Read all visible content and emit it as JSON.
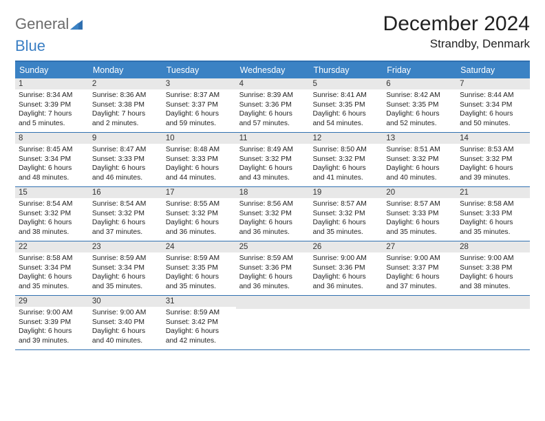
{
  "logo": {
    "word1": "General",
    "word2": "Blue"
  },
  "title": "December 2024",
  "location": "Strandby, Denmark",
  "colors": {
    "header_bg": "#3b82c4",
    "border": "#2f6fb0",
    "daynum_bg": "#e8e8e8",
    "logo_gray": "#6b6b6b",
    "logo_blue": "#3b7fc4"
  },
  "day_headers": [
    "Sunday",
    "Monday",
    "Tuesday",
    "Wednesday",
    "Thursday",
    "Friday",
    "Saturday"
  ],
  "weeks": [
    [
      {
        "n": "1",
        "sr": "8:34 AM",
        "ss": "3:39 PM",
        "dl": "7 hours and 5 minutes."
      },
      {
        "n": "2",
        "sr": "8:36 AM",
        "ss": "3:38 PM",
        "dl": "7 hours and 2 minutes."
      },
      {
        "n": "3",
        "sr": "8:37 AM",
        "ss": "3:37 PM",
        "dl": "6 hours and 59 minutes."
      },
      {
        "n": "4",
        "sr": "8:39 AM",
        "ss": "3:36 PM",
        "dl": "6 hours and 57 minutes."
      },
      {
        "n": "5",
        "sr": "8:41 AM",
        "ss": "3:35 PM",
        "dl": "6 hours and 54 minutes."
      },
      {
        "n": "6",
        "sr": "8:42 AM",
        "ss": "3:35 PM",
        "dl": "6 hours and 52 minutes."
      },
      {
        "n": "7",
        "sr": "8:44 AM",
        "ss": "3:34 PM",
        "dl": "6 hours and 50 minutes."
      }
    ],
    [
      {
        "n": "8",
        "sr": "8:45 AM",
        "ss": "3:34 PM",
        "dl": "6 hours and 48 minutes."
      },
      {
        "n": "9",
        "sr": "8:47 AM",
        "ss": "3:33 PM",
        "dl": "6 hours and 46 minutes."
      },
      {
        "n": "10",
        "sr": "8:48 AM",
        "ss": "3:33 PM",
        "dl": "6 hours and 44 minutes."
      },
      {
        "n": "11",
        "sr": "8:49 AM",
        "ss": "3:32 PM",
        "dl": "6 hours and 43 minutes."
      },
      {
        "n": "12",
        "sr": "8:50 AM",
        "ss": "3:32 PM",
        "dl": "6 hours and 41 minutes."
      },
      {
        "n": "13",
        "sr": "8:51 AM",
        "ss": "3:32 PM",
        "dl": "6 hours and 40 minutes."
      },
      {
        "n": "14",
        "sr": "8:53 AM",
        "ss": "3:32 PM",
        "dl": "6 hours and 39 minutes."
      }
    ],
    [
      {
        "n": "15",
        "sr": "8:54 AM",
        "ss": "3:32 PM",
        "dl": "6 hours and 38 minutes."
      },
      {
        "n": "16",
        "sr": "8:54 AM",
        "ss": "3:32 PM",
        "dl": "6 hours and 37 minutes."
      },
      {
        "n": "17",
        "sr": "8:55 AM",
        "ss": "3:32 PM",
        "dl": "6 hours and 36 minutes."
      },
      {
        "n": "18",
        "sr": "8:56 AM",
        "ss": "3:32 PM",
        "dl": "6 hours and 36 minutes."
      },
      {
        "n": "19",
        "sr": "8:57 AM",
        "ss": "3:32 PM",
        "dl": "6 hours and 35 minutes."
      },
      {
        "n": "20",
        "sr": "8:57 AM",
        "ss": "3:33 PM",
        "dl": "6 hours and 35 minutes."
      },
      {
        "n": "21",
        "sr": "8:58 AM",
        "ss": "3:33 PM",
        "dl": "6 hours and 35 minutes."
      }
    ],
    [
      {
        "n": "22",
        "sr": "8:58 AM",
        "ss": "3:34 PM",
        "dl": "6 hours and 35 minutes."
      },
      {
        "n": "23",
        "sr": "8:59 AM",
        "ss": "3:34 PM",
        "dl": "6 hours and 35 minutes."
      },
      {
        "n": "24",
        "sr": "8:59 AM",
        "ss": "3:35 PM",
        "dl": "6 hours and 35 minutes."
      },
      {
        "n": "25",
        "sr": "8:59 AM",
        "ss": "3:36 PM",
        "dl": "6 hours and 36 minutes."
      },
      {
        "n": "26",
        "sr": "9:00 AM",
        "ss": "3:36 PM",
        "dl": "6 hours and 36 minutes."
      },
      {
        "n": "27",
        "sr": "9:00 AM",
        "ss": "3:37 PM",
        "dl": "6 hours and 37 minutes."
      },
      {
        "n": "28",
        "sr": "9:00 AM",
        "ss": "3:38 PM",
        "dl": "6 hours and 38 minutes."
      }
    ],
    [
      {
        "n": "29",
        "sr": "9:00 AM",
        "ss": "3:39 PM",
        "dl": "6 hours and 39 minutes."
      },
      {
        "n": "30",
        "sr": "9:00 AM",
        "ss": "3:40 PM",
        "dl": "6 hours and 40 minutes."
      },
      {
        "n": "31",
        "sr": "8:59 AM",
        "ss": "3:42 PM",
        "dl": "6 hours and 42 minutes."
      },
      {
        "n": "",
        "sr": "",
        "ss": "",
        "dl": ""
      },
      {
        "n": "",
        "sr": "",
        "ss": "",
        "dl": ""
      },
      {
        "n": "",
        "sr": "",
        "ss": "",
        "dl": ""
      },
      {
        "n": "",
        "sr": "",
        "ss": "",
        "dl": ""
      }
    ]
  ],
  "labels": {
    "sunrise": "Sunrise: ",
    "sunset": "Sunset: ",
    "daylight": "Daylight: "
  }
}
